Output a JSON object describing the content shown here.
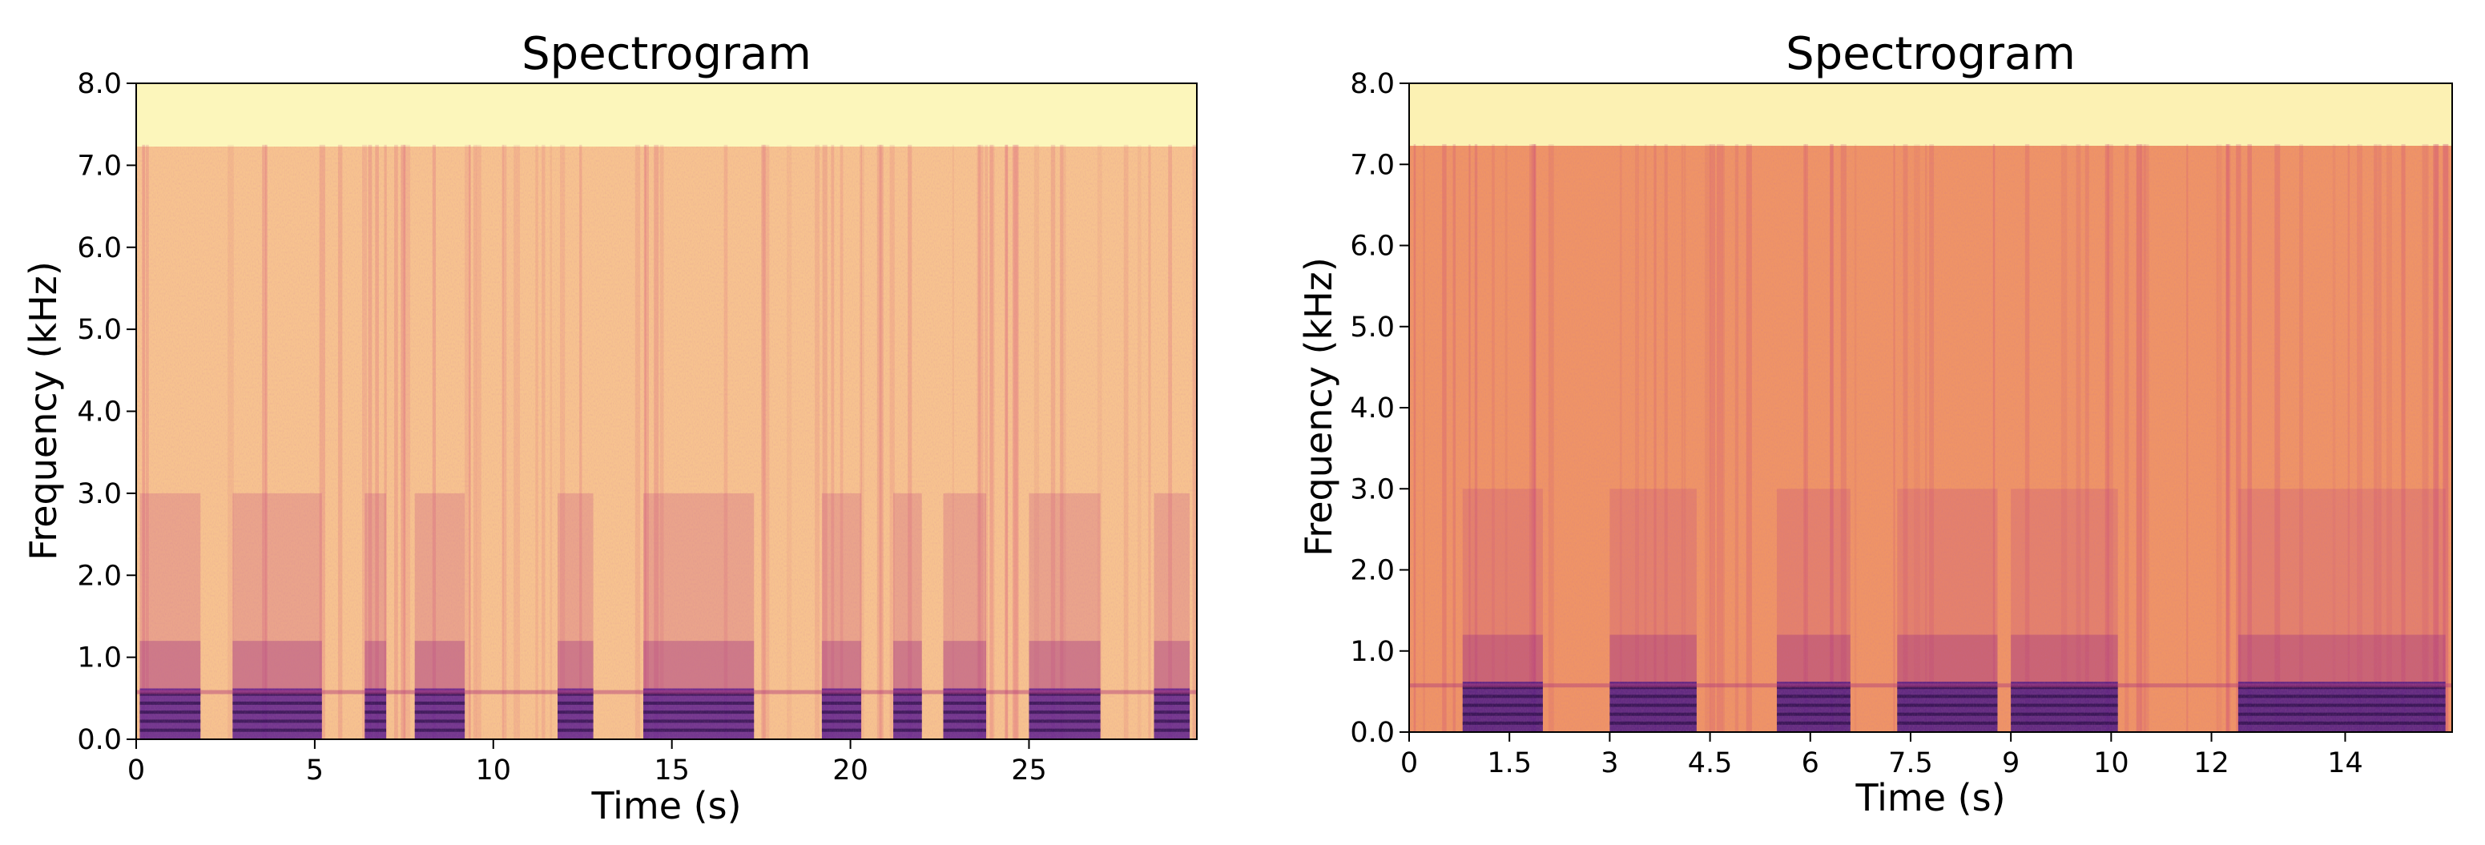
{
  "chart_data": [
    {
      "type": "heatmap",
      "title": "Spectrogram",
      "xlabel": "Time (s)",
      "ylabel": "Frequency (kHz)",
      "xlim": [
        0,
        29.7
      ],
      "ylim": [
        0,
        8.0
      ],
      "xticks": [
        0,
        5,
        10,
        15,
        20,
        25
      ],
      "xtick_labels": [
        "0",
        "5",
        "10",
        "15",
        "20",
        "25"
      ],
      "yticks": [
        0,
        1,
        2,
        3,
        4,
        5,
        6,
        7,
        8
      ],
      "ytick_labels": [
        "0.0",
        "1.0",
        "2.0",
        "3.0",
        "4.0",
        "5.0",
        "6.0",
        "7.0",
        "8.0"
      ],
      "colormap": "magma",
      "cutoff_khz": 7.25,
      "speech_segments_s": [
        [
          0.1,
          1.8
        ],
        [
          2.7,
          5.2
        ],
        [
          6.4,
          7.0
        ],
        [
          7.8,
          9.2
        ],
        [
          11.8,
          12.8
        ],
        [
          14.2,
          17.3
        ],
        [
          19.2,
          20.3
        ],
        [
          21.2,
          22.0
        ],
        [
          22.6,
          23.8
        ],
        [
          25.0,
          27.0
        ],
        [
          28.5,
          29.5
        ]
      ],
      "colors": {
        "cutoff_region": "#fcf6bb",
        "background_energy": "#f5b27f",
        "speech_low": "#5c1f8f"
      }
    },
    {
      "type": "heatmap",
      "title": "Spectrogram",
      "xlabel": "Time (s)",
      "ylabel": "Frequency (kHz)",
      "xlim": [
        0,
        15.6
      ],
      "ylim": [
        0,
        8.0
      ],
      "xticks": [
        0,
        1.5,
        3,
        4.5,
        6,
        7.5,
        9,
        10.5,
        12,
        14
      ],
      "xtick_labels": [
        "0",
        "1.5",
        "3",
        "4.5",
        "6",
        "7.5",
        "9",
        "10",
        "12",
        "14"
      ],
      "yticks": [
        0,
        1,
        2,
        3,
        4,
        5,
        6,
        7,
        8
      ],
      "ytick_labels": [
        "0.0",
        "1.0",
        "2.0",
        "3.0",
        "4.0",
        "5.0",
        "6.0",
        "7.0",
        "8.0"
      ],
      "colormap": "magma",
      "cutoff_khz": 7.25,
      "speech_segments_s": [
        [
          0.8,
          2.0
        ],
        [
          3.0,
          4.3
        ],
        [
          5.5,
          6.6
        ],
        [
          7.3,
          8.8
        ],
        [
          9.0,
          10.6
        ],
        [
          12.4,
          15.5
        ]
      ],
      "colors": {
        "cutoff_region": "#fcf1b3",
        "background_energy": "#ef8f63",
        "speech_low": "#4a1a86"
      }
    }
  ]
}
